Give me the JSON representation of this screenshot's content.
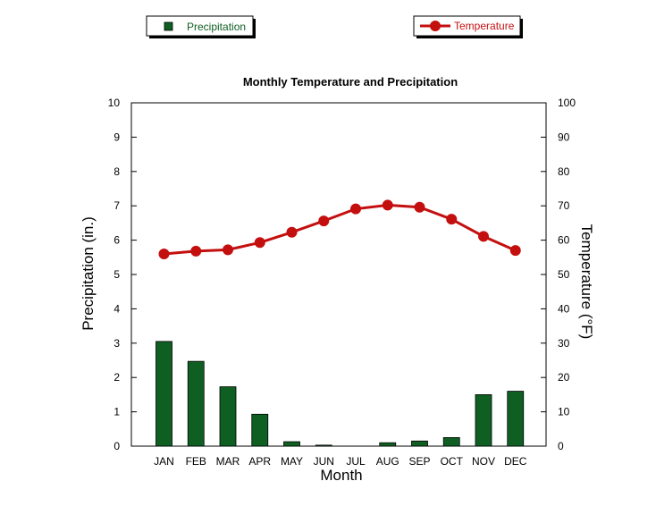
{
  "chart_data": {
    "type": "bar+line",
    "title": "Monthly Temperature and Precipitation",
    "xlabel": "Month",
    "ylabel_left": "Precipitation (in.)",
    "ylabel_right": "Temperature (°F)",
    "categories": [
      "JAN",
      "FEB",
      "MAR",
      "APR",
      "MAY",
      "JUN",
      "JUL",
      "AUG",
      "SEP",
      "OCT",
      "NOV",
      "DEC"
    ],
    "ylim_left": [
      0,
      10
    ],
    "ylim_right": [
      0,
      100
    ],
    "yticks_left": [
      0,
      1,
      2,
      3,
      4,
      5,
      6,
      7,
      8,
      9,
      10
    ],
    "yticks_right": [
      0,
      10,
      20,
      30,
      40,
      50,
      60,
      70,
      80,
      90,
      100
    ],
    "grid": false,
    "legend_placement": "top",
    "series": [
      {
        "name": "Precipitation",
        "kind": "bar",
        "axis": "left",
        "color": "#0f5f23",
        "values": [
          3.05,
          2.47,
          1.73,
          0.93,
          0.13,
          0.03,
          0.0,
          0.1,
          0.15,
          0.25,
          1.5,
          1.6
        ]
      },
      {
        "name": "Temperature",
        "kind": "line",
        "axis": "right",
        "color": "#c40f0f",
        "values": [
          56.0,
          56.8,
          57.2,
          59.3,
          62.3,
          65.6,
          69.1,
          70.2,
          69.6,
          66.1,
          61.1,
          57.0
        ]
      }
    ]
  }
}
